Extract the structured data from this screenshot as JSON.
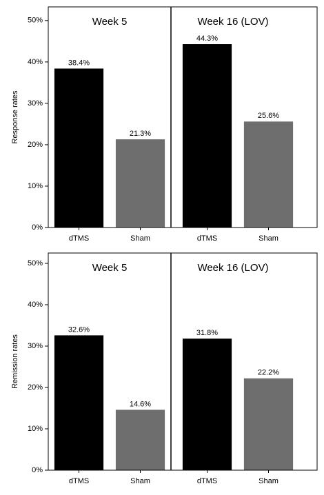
{
  "chart_data": [
    {
      "type": "bar",
      "ylabel": "Response rates",
      "ylim": [
        0,
        53.3
      ],
      "yticks": [
        {
          "value": 0,
          "label": "0%"
        },
        {
          "value": 10,
          "label": "10%"
        },
        {
          "value": 20,
          "label": "20%"
        },
        {
          "value": 30,
          "label": "30%"
        },
        {
          "value": 40,
          "label": "40%"
        },
        {
          "value": 50,
          "label": "50%"
        }
      ],
      "panels": [
        {
          "title": "Week 5",
          "categories": [
            "dTMS",
            "Sham"
          ],
          "values": [
            38.4,
            21.3
          ],
          "value_labels": [
            "38.4%",
            "21.3%"
          ],
          "colors": [
            "#000000",
            "#6e6e6e"
          ]
        },
        {
          "title": "Week 16 (LOV)",
          "categories": [
            "dTMS",
            "Sham"
          ],
          "values": [
            44.3,
            25.6
          ],
          "value_labels": [
            "44.3%",
            "25.6%"
          ],
          "colors": [
            "#000000",
            "#6e6e6e"
          ]
        }
      ]
    },
    {
      "type": "bar",
      "ylabel": "Remission rates",
      "ylim": [
        0,
        52.5
      ],
      "yticks": [
        {
          "value": 0,
          "label": "0%"
        },
        {
          "value": 10,
          "label": "10%"
        },
        {
          "value": 20,
          "label": "20%"
        },
        {
          "value": 30,
          "label": "30%"
        },
        {
          "value": 40,
          "label": "40%"
        },
        {
          "value": 50,
          "label": "50%"
        }
      ],
      "panels": [
        {
          "title": "Week 5",
          "categories": [
            "dTMS",
            "Sham"
          ],
          "values": [
            32.6,
            14.6
          ],
          "value_labels": [
            "32.6%",
            "14.6%"
          ],
          "colors": [
            "#000000",
            "#6e6e6e"
          ]
        },
        {
          "title": "Week 16 (LOV)",
          "categories": [
            "dTMS",
            "Sham"
          ],
          "values": [
            31.8,
            22.2
          ],
          "value_labels": [
            "31.8%",
            "22.2%"
          ],
          "colors": [
            "#000000",
            "#6e6e6e"
          ]
        }
      ]
    }
  ]
}
